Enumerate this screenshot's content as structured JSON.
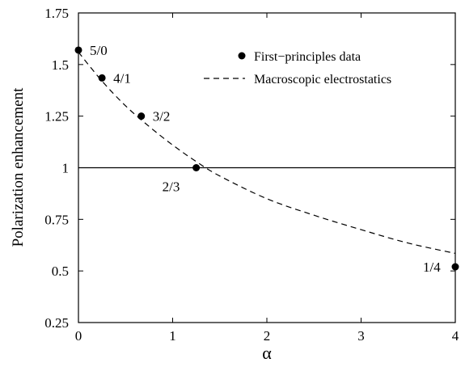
{
  "chart_data": {
    "type": "scatter",
    "title": "",
    "xlabel": "α",
    "ylabel": "Polarization enhancement",
    "xlim": [
      0,
      4
    ],
    "ylim": [
      0.25,
      1.75
    ],
    "x_ticks": [
      "0",
      "1",
      "2",
      "3",
      "4"
    ],
    "y_ticks": [
      "0.25",
      "0.5",
      "0.75",
      "1",
      "1.25",
      "1.5",
      "1.75"
    ],
    "grid": false,
    "legend_position": "top-right",
    "series": [
      {
        "name": "First−principles data",
        "style": "points",
        "points": [
          {
            "x": 0.0,
            "y": 1.57,
            "label": "5/0"
          },
          {
            "x": 0.25,
            "y": 1.435,
            "label": "4/1"
          },
          {
            "x": 0.667,
            "y": 1.25,
            "label": "3/2"
          },
          {
            "x": 1.25,
            "y": 1.0,
            "label": "2/3"
          },
          {
            "x": 4.0,
            "y": 0.52,
            "label": "1/4"
          }
        ]
      },
      {
        "name": "Macroscopic electrostatics",
        "style": "dashed",
        "x": [
          0,
          0.25,
          0.5,
          0.75,
          1.0,
          1.25,
          1.5,
          2.0,
          2.5,
          3.0,
          3.5,
          4.0
        ],
        "y": [
          1.56,
          1.42,
          1.3,
          1.2,
          1.11,
          1.03,
          0.96,
          0.85,
          0.77,
          0.7,
          0.635,
          0.585
        ]
      }
    ],
    "reference_line": {
      "y": 1.0
    }
  }
}
